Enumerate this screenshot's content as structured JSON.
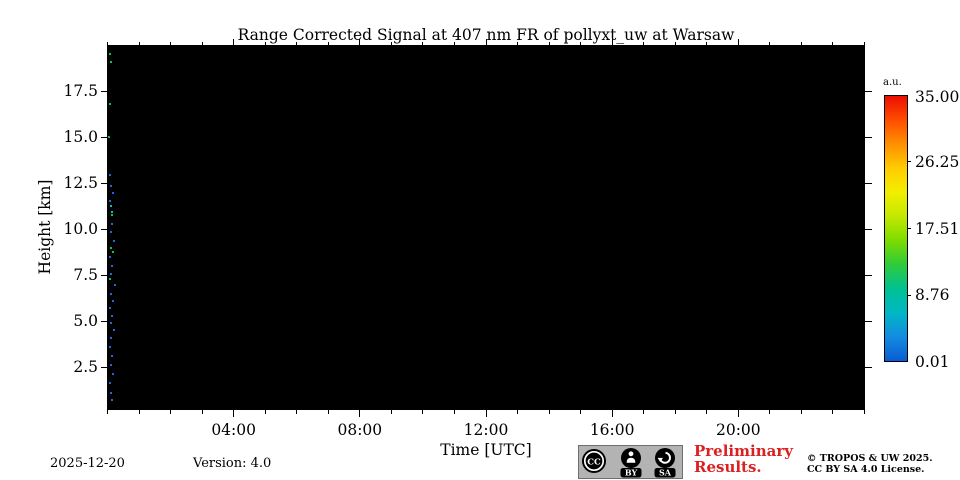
{
  "chart_data": {
    "type": "heatmap",
    "title": "Range Corrected Signal at 407 nm FR of pollyxt_uw at Warsaw",
    "xlabel": "Time [UTC]",
    "ylabel": "Height [km]",
    "x_hours_range": [
      0,
      24
    ],
    "x_major_tick_hours": [
      4,
      8,
      12,
      16,
      20
    ],
    "x_major_tick_labels": [
      "04:00",
      "08:00",
      "12:00",
      "16:00",
      "20:00"
    ],
    "x_minor_tick_interval_hours": 1,
    "ylim_km": [
      0.2,
      20.0
    ],
    "y_tick_values_km": [
      2.5,
      5.0,
      7.5,
      10.0,
      12.5,
      15.0,
      17.5
    ],
    "plot_background_color": "#000000",
    "signal_summary": "No signal above the colormap minimum: the field is uniformly black except sparse single-pixel noise speckles within the first ~30 minutes after 00:00 UTC",
    "noise_points": [
      [
        1,
        19.6,
        "g"
      ],
      [
        2,
        19.2,
        "g"
      ],
      [
        1,
        16.9,
        "g"
      ],
      [
        0,
        15.1,
        "g"
      ],
      [
        3,
        10.8,
        "g"
      ],
      [
        2,
        9.0,
        "g"
      ],
      [
        4,
        8.8,
        "g"
      ],
      [
        1,
        7.3,
        "g"
      ],
      [
        2,
        11.3,
        "c"
      ],
      [
        3,
        11.0,
        "c"
      ],
      [
        1,
        13.0,
        "b"
      ],
      [
        2,
        12.4,
        "b"
      ],
      [
        4,
        12.0,
        "b"
      ],
      [
        1,
        11.6,
        "b"
      ],
      [
        3,
        10.3,
        "b"
      ],
      [
        2,
        9.9,
        "b"
      ],
      [
        5,
        9.4,
        "b"
      ],
      [
        1,
        8.5,
        "b"
      ],
      [
        3,
        8.0,
        "b"
      ],
      [
        2,
        7.6,
        "b"
      ],
      [
        6,
        7.0,
        "b"
      ],
      [
        2,
        6.5,
        "b"
      ],
      [
        4,
        6.1,
        "b"
      ],
      [
        1,
        5.7,
        "b"
      ],
      [
        3,
        5.3,
        "b"
      ],
      [
        2,
        4.9,
        "b"
      ],
      [
        5,
        4.5,
        "b"
      ],
      [
        2,
        4.1,
        "b"
      ],
      [
        1,
        3.6,
        "b"
      ],
      [
        3,
        3.1,
        "b"
      ],
      [
        2,
        2.6,
        "b"
      ],
      [
        4,
        2.1,
        "b"
      ],
      [
        1,
        1.6,
        "b"
      ],
      [
        2,
        1.1,
        "b"
      ],
      [
        3,
        0.7,
        "b"
      ]
    ],
    "noise_colors": {
      "g": "#00c853",
      "b": "#2266e3",
      "c": "#00bcd4"
    },
    "colorbar": {
      "units_label": "a.u.",
      "tick_labels": [
        "35.00",
        "26.25",
        "17.51",
        "8.76",
        "0.01"
      ],
      "vmin": 0.01,
      "vmax": 35.0,
      "gradient_top_to_bottom": [
        "#ed0e01",
        "#ff4d00",
        "#ff9000",
        "#ffcc00",
        "#f2ee00",
        "#c3e800",
        "#7cdc00",
        "#2ecb3a",
        "#00c193",
        "#00b7c4",
        "#128ce0",
        "#0b5cd5"
      ]
    },
    "grid": false,
    "legend": "none (colorbar at right)"
  },
  "footer": {
    "date": "2025-12-20",
    "version": "Version: 4.0",
    "preliminary": "Preliminary Results.",
    "copyright_line1": "© TROPOS & UW 2025.",
    "copyright_line2": "CC BY SA 4.0 License.",
    "badge": {
      "cc": "CC",
      "by": "BY",
      "sa": "SA"
    }
  },
  "colors": {
    "preliminary_red": "#dc2020",
    "badge_background": "#b3b3b3",
    "axis_text": "#000000",
    "figure_background": "#ffffff"
  }
}
